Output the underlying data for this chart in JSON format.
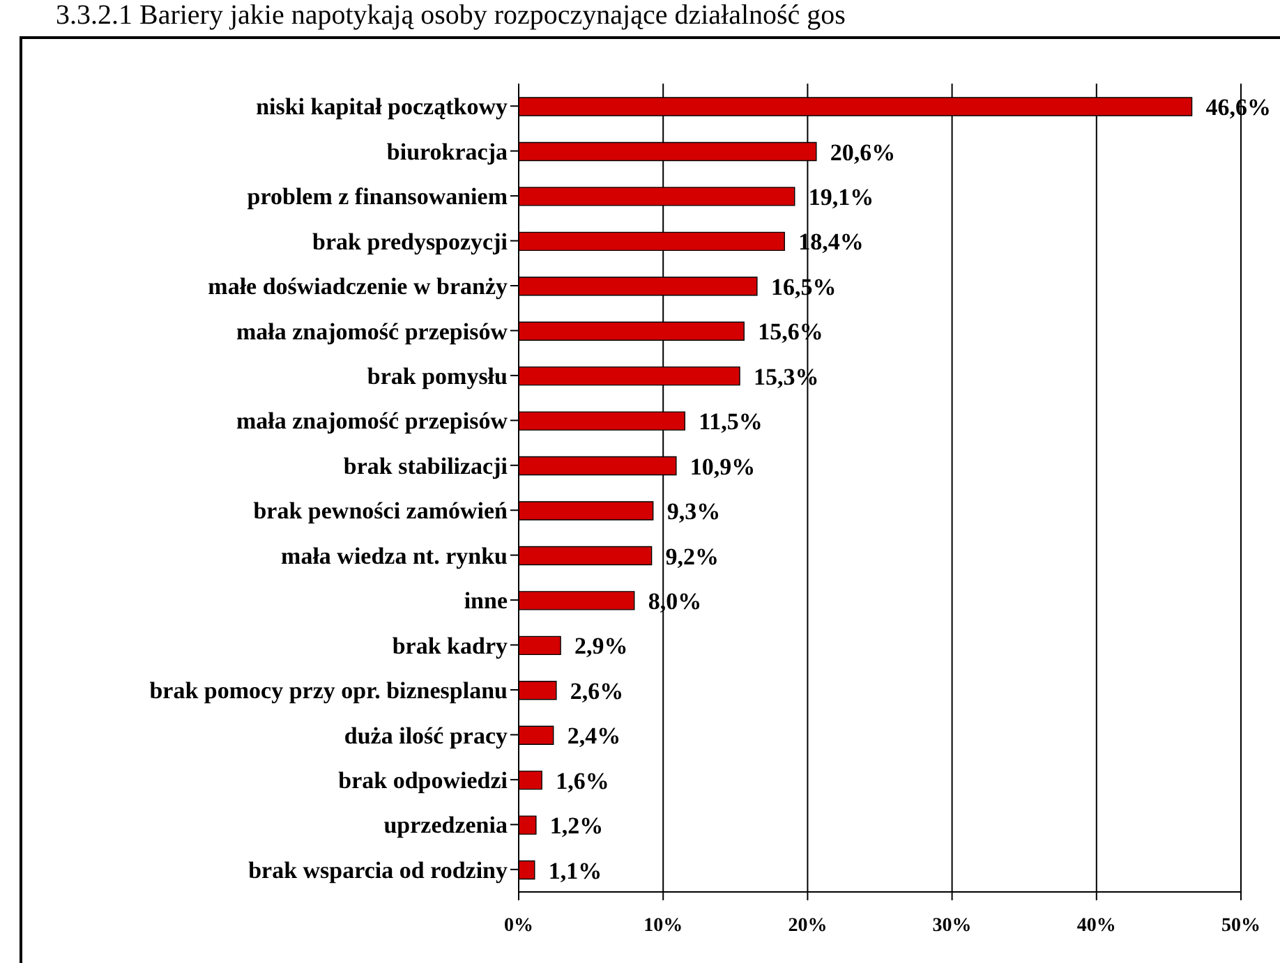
{
  "chart_data": {
    "type": "bar",
    "orientation": "horizontal",
    "title": "3.3.2.1 Bariery jakie napotykają osoby rozpoczynające działalność gos",
    "categories": [
      "niski kapitał początkowy",
      "biurokracja",
      "problem z finansowaniem",
      "brak predyspozycji",
      "małe doświadczenie w branży",
      "mała znajomość przepisów",
      "brak pomysłu",
      "mała znajomość przepisów ",
      "brak stabilizacji",
      "brak pewności zamówień",
      "mała wiedza nt. rynku",
      "inne",
      "brak kadry",
      "brak pomocy przy opr. biznesplanu",
      "duża ilość pracy",
      "brak odpowiedzi",
      "uprzedzenia",
      "brak wsparcia od rodziny"
    ],
    "values": [
      46.6,
      20.6,
      19.1,
      18.4,
      16.5,
      15.6,
      15.3,
      11.5,
      10.9,
      9.3,
      9.2,
      8.0,
      2.9,
      2.6,
      2.4,
      1.6,
      1.2,
      1.1
    ],
    "value_labels": [
      "46,6%",
      "20,6%",
      "19,1%",
      "18,4%",
      "16,5%",
      "15,6%",
      "15,3%",
      "11,5%",
      "10,9%",
      "9,3%",
      "9,2%",
      "8,0%",
      "2,9%",
      "2,6%",
      "2,4%",
      "1,6%",
      "1,2%",
      "1,1%"
    ],
    "color": "#d40000",
    "xlim": [
      0,
      50
    ],
    "xticks": [
      {
        "value": 0,
        "label": "0%"
      },
      {
        "value": 10,
        "label": "10%"
      },
      {
        "value": 20,
        "label": "20%"
      },
      {
        "value": 30,
        "label": "30%"
      },
      {
        "value": 40,
        "label": "40%"
      },
      {
        "value": 50,
        "label": "50%"
      }
    ],
    "grid": "x",
    "legend": false
  }
}
